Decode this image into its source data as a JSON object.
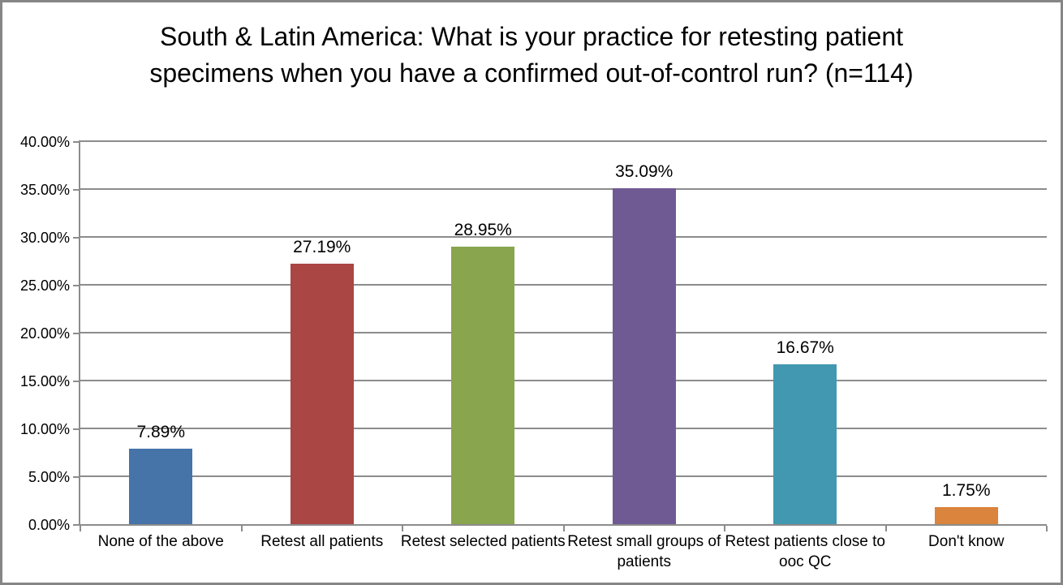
{
  "chart_data": {
    "type": "bar",
    "title": "South & Latin America: What is your practice for retesting patient specimens when you have a confirmed out-of-control run? (n=114)",
    "categories": [
      "None of the above",
      "Retest all patients",
      "Retest selected patients",
      "Retest small groups of patients",
      "Retest patients close to ooc QC",
      "Don't know"
    ],
    "values": [
      7.89,
      27.19,
      28.95,
      35.09,
      16.67,
      1.75
    ],
    "value_labels": [
      "7.89%",
      "27.19%",
      "28.95%",
      "35.09%",
      "16.67%",
      "1.75%"
    ],
    "bar_colors": [
      "#4673A8",
      "#AA4643",
      "#89A54E",
      "#705A94",
      "#4198B0",
      "#DB843D"
    ],
    "xlabel": "",
    "ylabel": "",
    "ylim": [
      0,
      40
    ],
    "yticks": [
      0,
      5,
      10,
      15,
      20,
      25,
      30,
      35,
      40
    ],
    "ytick_labels": [
      "0.00%",
      "5.00%",
      "10.00%",
      "15.00%",
      "20.00%",
      "25.00%",
      "30.00%",
      "35.00%",
      "40.00%"
    ],
    "grid": true,
    "legend": "none"
  },
  "colors": {
    "gridline": "#8C8C8C",
    "axis": "#8C8C8C",
    "frame": "#868686",
    "background": "#FFFFFF",
    "text": "#000000"
  }
}
